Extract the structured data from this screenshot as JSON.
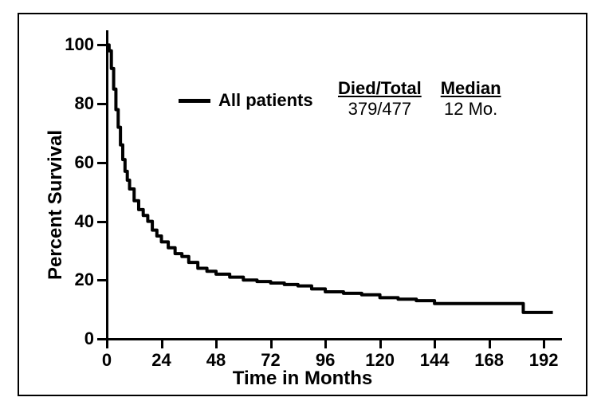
{
  "chart": {
    "type": "line",
    "xlabel": "Time in Months",
    "ylabel": "Percent Survival",
    "label_fontsize": 24,
    "tick_fontsize": 22,
    "xlim": [
      0,
      200
    ],
    "ylim": [
      0,
      105
    ],
    "xticks": [
      0,
      24,
      48,
      72,
      96,
      120,
      144,
      168,
      192
    ],
    "yticks": [
      0,
      20,
      40,
      60,
      80,
      100
    ],
    "axis_color": "#000000",
    "background_color": "#ffffff",
    "line_color": "#000000",
    "line_width": 4,
    "series_name": "All patients",
    "legend": {
      "died_total_header": "Died/Total",
      "died_total_value": "379/477",
      "median_header": "Median",
      "median_value": "12 Mo."
    },
    "curve_points": [
      [
        0,
        100
      ],
      [
        1,
        98
      ],
      [
        2,
        92
      ],
      [
        3,
        85
      ],
      [
        4,
        78
      ],
      [
        5,
        72
      ],
      [
        6,
        66
      ],
      [
        7,
        61
      ],
      [
        8,
        57
      ],
      [
        9,
        54
      ],
      [
        10,
        51
      ],
      [
        12,
        47
      ],
      [
        14,
        44
      ],
      [
        16,
        42
      ],
      [
        18,
        40
      ],
      [
        20,
        37
      ],
      [
        22,
        35
      ],
      [
        24,
        33
      ],
      [
        27,
        31
      ],
      [
        30,
        29
      ],
      [
        33,
        28
      ],
      [
        36,
        26
      ],
      [
        40,
        24
      ],
      [
        44,
        23
      ],
      [
        48,
        22
      ],
      [
        54,
        21
      ],
      [
        60,
        20
      ],
      [
        66,
        19.5
      ],
      [
        72,
        19
      ],
      [
        78,
        18.5
      ],
      [
        84,
        18
      ],
      [
        90,
        17
      ],
      [
        96,
        16
      ],
      [
        104,
        15.5
      ],
      [
        112,
        15
      ],
      [
        120,
        14
      ],
      [
        128,
        13.5
      ],
      [
        136,
        13
      ],
      [
        144,
        12
      ],
      [
        152,
        12
      ],
      [
        160,
        12
      ],
      [
        168,
        12
      ],
      [
        176,
        12
      ],
      [
        182,
        12
      ],
      [
        183,
        9
      ],
      [
        196,
        9
      ]
    ]
  }
}
